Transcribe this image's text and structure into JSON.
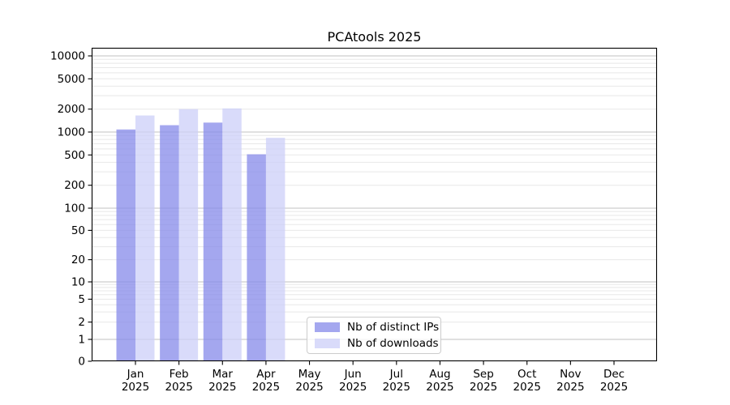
{
  "chart_data": {
    "type": "bar",
    "title": "PCAtools 2025",
    "xlabel": "",
    "ylabel": "",
    "scale": "symlog",
    "grid": true,
    "legend_position": "lower center",
    "categories": [
      "Jan 2025",
      "Feb 2025",
      "Mar 2025",
      "Apr 2025",
      "May 2025",
      "Jun 2025",
      "Jul 2025",
      "Aug 2025",
      "Sep 2025",
      "Oct 2025",
      "Nov 2025",
      "Dec 2025"
    ],
    "series": [
      {
        "name": "Nb of distinct IPs",
        "color": "#868ae9",
        "values": [
          1080,
          1230,
          1330,
          510,
          null,
          null,
          null,
          null,
          null,
          null,
          null,
          null
        ]
      },
      {
        "name": "Nb of downloads",
        "color": "#cccff8",
        "values": [
          1650,
          2000,
          2040,
          840,
          null,
          null,
          null,
          null,
          null,
          null,
          null,
          null
        ]
      }
    ],
    "bar_opacity": 0.75,
    "y_ticks": [
      0,
      1,
      2,
      5,
      10,
      20,
      50,
      100,
      200,
      500,
      1000,
      2000,
      5000,
      10000
    ],
    "y_tick_labels": [
      "0",
      "1",
      "2",
      "5",
      "10",
      "20",
      "50",
      "100",
      "200",
      "500",
      "1000",
      "2000",
      "5000",
      "10000"
    ],
    "y_major_gridlines": [
      1,
      10,
      100,
      1000,
      10000
    ],
    "ylim": [
      0,
      13000
    ],
    "colors": {
      "grid_minor": "#e8e8e8",
      "grid_major": "#c2c2c2",
      "spine": "#000000",
      "tick": "#000000",
      "tick_label": "#000000",
      "plot_background": "#ffffff"
    }
  }
}
